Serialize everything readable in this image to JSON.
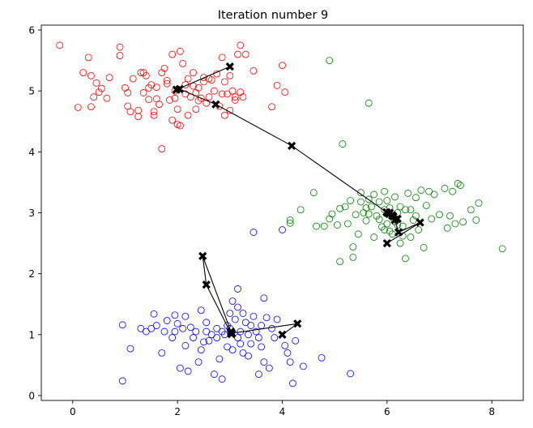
{
  "chart_data": {
    "type": "scatter",
    "title": "Iteration number 9",
    "xlabel": "",
    "ylabel": "",
    "xlim": [
      -0.6,
      8.6
    ],
    "ylim": [
      -0.08,
      6.08
    ],
    "x_ticks": [
      0,
      2,
      4,
      6,
      8
    ],
    "y_ticks": [
      0,
      1,
      2,
      3,
      4,
      5,
      6
    ],
    "grid": false,
    "clusters": [
      {
        "color": "#ff0000",
        "marker": "open-circle",
        "points": [
          [
            -0.25,
            5.75
          ],
          [
            0.2,
            5.3
          ],
          [
            0.3,
            5.55
          ],
          [
            0.35,
            5.25
          ],
          [
            0.1,
            4.73
          ],
          [
            0.35,
            4.74
          ],
          [
            0.45,
            5.13
          ],
          [
            0.5,
            4.98
          ],
          [
            0.55,
            5.04
          ],
          [
            0.7,
            5.22
          ],
          [
            0.65,
            4.88
          ],
          [
            0.4,
            4.9
          ],
          [
            0.9,
            5.72
          ],
          [
            0.9,
            5.58
          ],
          [
            1.0,
            5.05
          ],
          [
            1.05,
            4.75
          ],
          [
            1.15,
            5.2
          ],
          [
            1.1,
            4.66
          ],
          [
            1.25,
            4.58
          ],
          [
            1.3,
            5.3
          ],
          [
            1.35,
            4.97
          ],
          [
            1.4,
            5.25
          ],
          [
            1.5,
            5.1
          ],
          [
            1.45,
            4.86
          ],
          [
            1.55,
            4.6
          ],
          [
            1.6,
            5.06
          ],
          [
            1.65,
            4.78
          ],
          [
            1.7,
            5.3
          ],
          [
            1.75,
            5.37
          ],
          [
            1.8,
            5.17
          ],
          [
            1.85,
            4.85
          ],
          [
            1.9,
            5.6
          ],
          [
            1.95,
            5.0
          ],
          [
            2.0,
            4.7
          ],
          [
            2.05,
            5.65
          ],
          [
            2.1,
            5.45
          ],
          [
            2.15,
            5.1
          ],
          [
            2.2,
            4.6
          ],
          [
            2.25,
            4.9
          ],
          [
            2.3,
            5.3
          ],
          [
            2.35,
            4.97
          ],
          [
            2.4,
            5.05
          ],
          [
            2.45,
            4.88
          ],
          [
            2.5,
            5.15
          ],
          [
            2.55,
            4.8
          ],
          [
            2.6,
            5.2
          ],
          [
            2.7,
            5.0
          ],
          [
            2.8,
            4.75
          ],
          [
            2.85,
            5.55
          ],
          [
            2.9,
            5.15
          ],
          [
            2.9,
            4.6
          ],
          [
            3.0,
            4.68
          ],
          [
            3.05,
            5.0
          ],
          [
            3.1,
            4.85
          ],
          [
            3.15,
            5.6
          ],
          [
            3.2,
            5.75
          ],
          [
            3.25,
            4.9
          ],
          [
            3.3,
            5.6
          ],
          [
            3.45,
            5.33
          ],
          [
            3.8,
            4.74
          ],
          [
            3.9,
            5.09
          ],
          [
            4.0,
            5.42
          ],
          [
            4.05,
            4.98
          ],
          [
            1.7,
            4.05
          ],
          [
            2.05,
            4.43
          ],
          [
            1.55,
            4.66
          ],
          [
            1.9,
            4.52
          ],
          [
            2.6,
            4.9
          ],
          [
            2.2,
            5.2
          ],
          [
            1.25,
            4.68
          ],
          [
            1.6,
            4.87
          ],
          [
            2.75,
            5.28
          ],
          [
            2.35,
            4.7
          ],
          [
            1.05,
            4.97
          ],
          [
            3.0,
            5.25
          ],
          [
            2.65,
            5.18
          ],
          [
            2.0,
            4.45
          ],
          [
            1.35,
            5.3
          ],
          [
            1.8,
            5.12
          ],
          [
            2.95,
            4.95
          ],
          [
            3.1,
            4.9
          ],
          [
            2.4,
            4.84
          ],
          [
            2.15,
            4.95
          ],
          [
            1.95,
            4.88
          ],
          [
            2.5,
            5.22
          ],
          [
            2.3,
            5.08
          ],
          [
            1.45,
            5.05
          ],
          [
            2.85,
            4.95
          ],
          [
            3.2,
            4.98
          ]
        ]
      },
      {
        "color": "#008000",
        "marker": "open-circle",
        "points": [
          [
            4.9,
            5.5
          ],
          [
            5.65,
            4.8
          ],
          [
            5.15,
            4.13
          ],
          [
            4.35,
            3.05
          ],
          [
            4.15,
            2.88
          ],
          [
            4.15,
            2.83
          ],
          [
            4.6,
            3.33
          ],
          [
            4.65,
            2.78
          ],
          [
            4.8,
            2.78
          ],
          [
            4.9,
            2.9
          ],
          [
            4.95,
            2.98
          ],
          [
            5.05,
            2.8
          ],
          [
            5.1,
            3.07
          ],
          [
            5.2,
            3.1
          ],
          [
            5.25,
            2.82
          ],
          [
            5.3,
            3.2
          ],
          [
            5.35,
            2.44
          ],
          [
            5.35,
            2.27
          ],
          [
            5.1,
            2.2
          ],
          [
            5.4,
            2.97
          ],
          [
            5.45,
            2.65
          ],
          [
            5.5,
            3.33
          ],
          [
            5.55,
            3.0
          ],
          [
            5.6,
            2.87
          ],
          [
            5.65,
            3.22
          ],
          [
            5.7,
            3.1
          ],
          [
            5.75,
            2.6
          ],
          [
            5.8,
            2.95
          ],
          [
            5.85,
            3.18
          ],
          [
            5.9,
            2.77
          ],
          [
            5.95,
            3.35
          ],
          [
            6.0,
            2.82
          ],
          [
            6.05,
            3.08
          ],
          [
            6.1,
            2.65
          ],
          [
            6.15,
            3.26
          ],
          [
            6.2,
            3.0
          ],
          [
            6.25,
            2.5
          ],
          [
            6.3,
            2.78
          ],
          [
            6.35,
            3.05
          ],
          [
            6.35,
            2.25
          ],
          [
            6.4,
            3.32
          ],
          [
            6.45,
            2.6
          ],
          [
            6.5,
            2.88
          ],
          [
            6.55,
            3.25
          ],
          [
            6.6,
            2.72
          ],
          [
            6.65,
            3.37
          ],
          [
            6.7,
            2.43
          ],
          [
            6.75,
            3.12
          ],
          [
            6.8,
            3.35
          ],
          [
            6.85,
            2.9
          ],
          [
            6.9,
            3.3
          ],
          [
            7.0,
            2.97
          ],
          [
            7.1,
            3.4
          ],
          [
            7.15,
            2.75
          ],
          [
            7.2,
            2.95
          ],
          [
            7.25,
            3.35
          ],
          [
            7.3,
            2.82
          ],
          [
            7.35,
            3.48
          ],
          [
            7.45,
            2.85
          ],
          [
            7.4,
            3.45
          ],
          [
            7.6,
            3.05
          ],
          [
            7.7,
            2.88
          ],
          [
            7.75,
            3.16
          ],
          [
            8.2,
            2.41
          ],
          [
            5.5,
            3.18
          ],
          [
            5.6,
            3.08
          ],
          [
            5.85,
            2.89
          ],
          [
            5.95,
            2.72
          ],
          [
            6.0,
            3.2
          ],
          [
            6.1,
            2.95
          ],
          [
            6.2,
            2.8
          ],
          [
            6.25,
            3.1
          ],
          [
            5.75,
            3.3
          ],
          [
            5.65,
            2.98
          ],
          [
            6.05,
            2.7
          ],
          [
            6.3,
            2.62
          ],
          [
            6.45,
            3.05
          ],
          [
            6.55,
            2.95
          ],
          [
            5.95,
            3.05
          ],
          [
            6.15,
            2.85
          ]
        ]
      },
      {
        "color": "#0000ff",
        "marker": "open-circle",
        "points": [
          [
            0.95,
            1.16
          ],
          [
            0.95,
            0.24
          ],
          [
            1.1,
            0.77
          ],
          [
            1.3,
            1.1
          ],
          [
            1.4,
            1.05
          ],
          [
            1.5,
            1.1
          ],
          [
            1.55,
            1.34
          ],
          [
            1.6,
            1.15
          ],
          [
            1.7,
            0.7
          ],
          [
            1.75,
            1.05
          ],
          [
            1.8,
            1.23
          ],
          [
            1.9,
            0.95
          ],
          [
            1.95,
            1.32
          ],
          [
            2.0,
            1.18
          ],
          [
            2.05,
            0.45
          ],
          [
            2.1,
            1.1
          ],
          [
            2.15,
            0.82
          ],
          [
            2.2,
            0.4
          ],
          [
            2.25,
            1.12
          ],
          [
            2.3,
            0.95
          ],
          [
            2.4,
            0.55
          ],
          [
            2.45,
            1.4
          ],
          [
            2.5,
            0.88
          ],
          [
            2.55,
            1.2
          ],
          [
            2.6,
            0.9
          ],
          [
            2.7,
            0.35
          ],
          [
            2.75,
            1.1
          ],
          [
            2.8,
            0.6
          ],
          [
            2.85,
            0.27
          ],
          [
            2.9,
            1.0
          ],
          [
            2.95,
            0.8
          ],
          [
            3.0,
            1.35
          ],
          [
            3.05,
            1.55
          ],
          [
            3.1,
            1.25
          ],
          [
            3.15,
            0.95
          ],
          [
            3.2,
            1.05
          ],
          [
            3.25,
            0.7
          ],
          [
            3.3,
            1.2
          ],
          [
            3.35,
            1.0
          ],
          [
            3.4,
            0.85
          ],
          [
            3.45,
            2.68
          ],
          [
            3.5,
            1.05
          ],
          [
            3.55,
            0.95
          ],
          [
            3.6,
            1.15
          ],
          [
            3.65,
            0.55
          ],
          [
            3.7,
            1.28
          ],
          [
            3.75,
            0.45
          ],
          [
            3.8,
            1.1
          ],
          [
            3.85,
            0.95
          ],
          [
            3.9,
            1.25
          ],
          [
            4.0,
            2.72
          ],
          [
            4.05,
            0.82
          ],
          [
            4.1,
            0.7
          ],
          [
            4.15,
            0.55
          ],
          [
            4.2,
            0.2
          ],
          [
            4.25,
            0.9
          ],
          [
            4.4,
            0.48
          ],
          [
            4.75,
            0.62
          ],
          [
            5.3,
            0.36
          ],
          [
            3.15,
            1.75
          ],
          [
            2.95,
            1.15
          ],
          [
            2.85,
            1.05
          ],
          [
            3.05,
            0.75
          ],
          [
            3.25,
            1.35
          ],
          [
            3.35,
            0.65
          ],
          [
            3.45,
            1.3
          ],
          [
            3.65,
            1.6
          ],
          [
            2.65,
            1.0
          ],
          [
            2.45,
            0.75
          ],
          [
            2.35,
            1.05
          ],
          [
            3.15,
            1.45
          ],
          [
            3.55,
            0.35
          ],
          [
            1.95,
            1.05
          ],
          [
            2.15,
            1.3
          ],
          [
            2.55,
            1.05
          ],
          [
            2.75,
            0.95
          ],
          [
            3.0,
            1.1
          ],
          [
            3.2,
            0.85
          ],
          [
            3.4,
            1.15
          ],
          [
            3.6,
            0.8
          ]
        ]
      }
    ],
    "centroid_paths": [
      [
        [
          3.0,
          5.4
        ],
        [
          1.98,
          5.02
        ],
        [
          2.04,
          5.03
        ],
        [
          2.73,
          4.78
        ],
        [
          4.18,
          4.1
        ],
        [
          5.99,
          3.01
        ],
        [
          6.05,
          3.0
        ],
        [
          6.1,
          2.96
        ],
        [
          6.12,
          2.94
        ],
        [
          6.2,
          2.9
        ]
      ],
      [
        [
          6.0,
          2.5
        ],
        [
          6.63,
          2.84
        ],
        [
          6.22,
          2.68
        ],
        [
          6.15,
          2.88
        ],
        [
          6.1,
          2.95
        ],
        [
          6.04,
          2.98
        ],
        [
          6.0,
          3.0
        ]
      ],
      [
        [
          4.0,
          1.0
        ],
        [
          4.29,
          1.18
        ],
        [
          3.02,
          1.02
        ],
        [
          2.55,
          1.82
        ],
        [
          2.48,
          2.29
        ],
        [
          3.02,
          1.05
        ],
        [
          3.04,
          1.02
        ],
        [
          3.03,
          1.01
        ]
      ]
    ],
    "centroid_color": "#000000",
    "centroid_marker": "bold-x"
  }
}
